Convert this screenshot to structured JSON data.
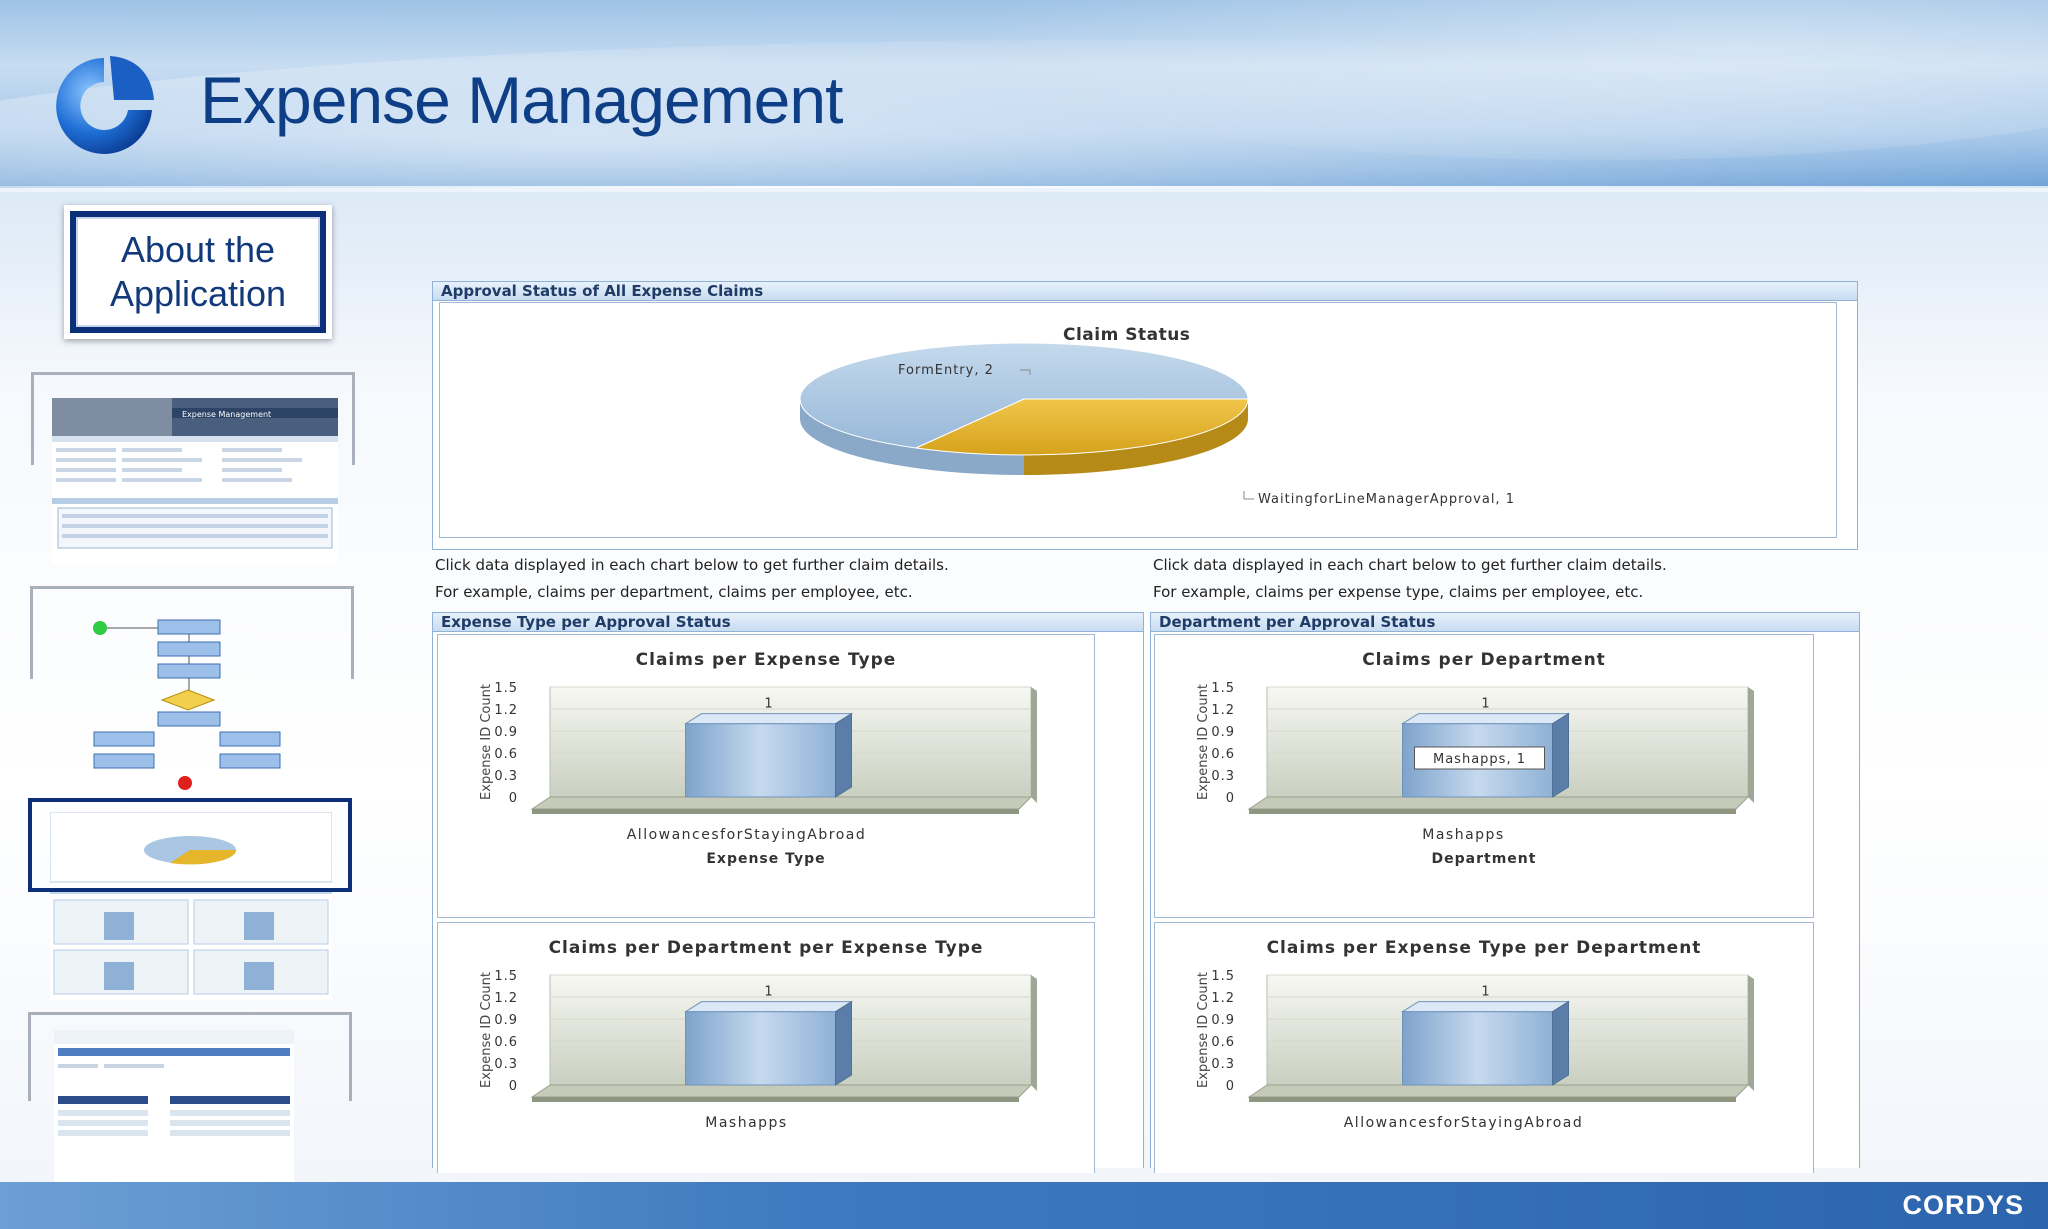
{
  "header": {
    "title": "Expense Management"
  },
  "sidebar": {
    "about_label": "About the\nApplication",
    "thumbnails": [
      {
        "title": "Expense Management"
      },
      {
        "title": ""
      },
      {
        "title": ""
      },
      {
        "title": ""
      }
    ]
  },
  "approval_panel": {
    "title": "Approval Status of All Expense Claims",
    "chart_title": "Claim Status",
    "label_formentry": "FormEntry, 2",
    "label_waiting": "WaitingforLineManagerApproval, 1"
  },
  "notes": {
    "left_line1": "Click data displayed in each chart below to get further claim details.",
    "left_line2": "For example, claims per department, claims per employee, etc.",
    "right_line1": "Click data displayed in each chart below to get further claim details.",
    "right_line2": "For example, claims per expense type, claims per employee, etc."
  },
  "expense_panel": {
    "title": "Expense Type per Approval Status"
  },
  "department_panel": {
    "title": "Department per Approval Status"
  },
  "tooltip": "Mashapps, 1",
  "footer": {
    "brand": "CORDYS"
  },
  "colors": {
    "title_blue": "#0e3f86",
    "pie_blue": "#a9c6e2",
    "pie_gold": "#e5b52c",
    "bar_blue": "#8fb1d6"
  },
  "chart_data": [
    {
      "type": "pie",
      "title": "Claim Status",
      "categories": [
        "FormEntry",
        "WaitingforLineManagerApproval"
      ],
      "values": [
        2,
        1
      ]
    },
    {
      "type": "bar",
      "title": "Claims per Expense Type",
      "categories": [
        "AllowancesforStayingAbroad"
      ],
      "values": [
        1
      ],
      "data_labels": [
        "1"
      ],
      "xlabel": "Expense Type",
      "ylabel": "Expense ID Count",
      "ylim": [
        0,
        1.5
      ],
      "yticks": [
        "0",
        "0.3",
        "0.6",
        "0.9",
        "1.2",
        "1.5"
      ]
    },
    {
      "type": "bar",
      "title": "Claims per Department",
      "categories": [
        "Mashapps"
      ],
      "values": [
        1
      ],
      "data_labels": [
        "1"
      ],
      "xlabel": "Department",
      "ylabel": "Expense ID Count",
      "ylim": [
        0,
        1.5
      ],
      "yticks": [
        "0",
        "0.3",
        "0.6",
        "0.9",
        "1.2",
        "1.5"
      ]
    },
    {
      "type": "bar",
      "title": "Claims per Department per Expense Type",
      "categories": [
        "Mashapps"
      ],
      "values": [
        1
      ],
      "data_labels": [
        "1"
      ],
      "xlabel": "",
      "ylabel": "Expense ID Count",
      "ylim": [
        0,
        1.5
      ],
      "yticks": [
        "0",
        "0.3",
        "0.6",
        "0.9",
        "1.2",
        "1.5"
      ]
    },
    {
      "type": "bar",
      "title": "Claims per Expense Type per Department",
      "categories": [
        "AllowancesforStayingAbroad"
      ],
      "values": [
        1
      ],
      "data_labels": [
        "1"
      ],
      "xlabel": "",
      "ylabel": "Expense ID Count",
      "ylim": [
        0,
        1.5
      ],
      "yticks": [
        "0",
        "0.3",
        "0.6",
        "0.9",
        "1.2",
        "1.5"
      ]
    }
  ]
}
